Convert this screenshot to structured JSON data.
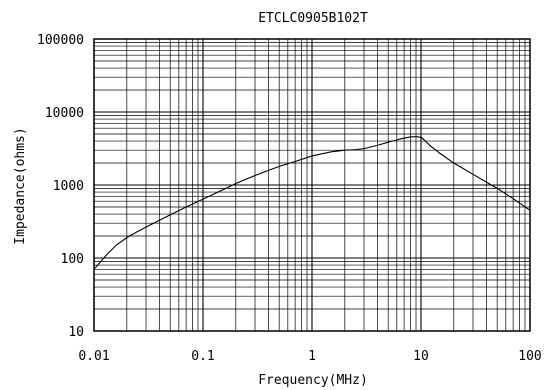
{
  "chart_data": {
    "type": "line",
    "title": "ETCLC0905B102T",
    "xlabel": "Frequency(MHz)",
    "ylabel": "Impedance(ohms)",
    "xscale": "log",
    "yscale": "log",
    "xlim": [
      0.01,
      100
    ],
    "ylim": [
      10,
      100000
    ],
    "grid": true,
    "x_ticks": [
      {
        "value": 0.01,
        "label": "0.01"
      },
      {
        "value": 0.1,
        "label": "0.1"
      },
      {
        "value": 1,
        "label": "1"
      },
      {
        "value": 10,
        "label": "10"
      },
      {
        "value": 100,
        "label": "100"
      }
    ],
    "y_ticks": [
      {
        "value": 10,
        "label": "10"
      },
      {
        "value": 100,
        "label": "100"
      },
      {
        "value": 1000,
        "label": "1000"
      },
      {
        "value": 10000,
        "label": "10000"
      },
      {
        "value": 100000,
        "label": "100000"
      }
    ],
    "series": [
      {
        "x": [
          0.01,
          0.013,
          0.016,
          0.02,
          0.025,
          0.03,
          0.04,
          0.05,
          0.07,
          0.1,
          0.15,
          0.2,
          0.3,
          0.5,
          0.7,
          1,
          1.5,
          2,
          2.5,
          3,
          4,
          5,
          6,
          7,
          8,
          9,
          10,
          11,
          12,
          15,
          20,
          30,
          50,
          70,
          100
        ],
        "y": [
          70,
          110,
          150,
          190,
          230,
          265,
          330,
          390,
          500,
          640,
          850,
          1050,
          1350,
          1800,
          2100,
          2500,
          2850,
          3000,
          3050,
          3150,
          3500,
          3850,
          4150,
          4400,
          4550,
          4600,
          4500,
          4000,
          3500,
          2700,
          2000,
          1400,
          900,
          650,
          450
        ]
      }
    ]
  }
}
